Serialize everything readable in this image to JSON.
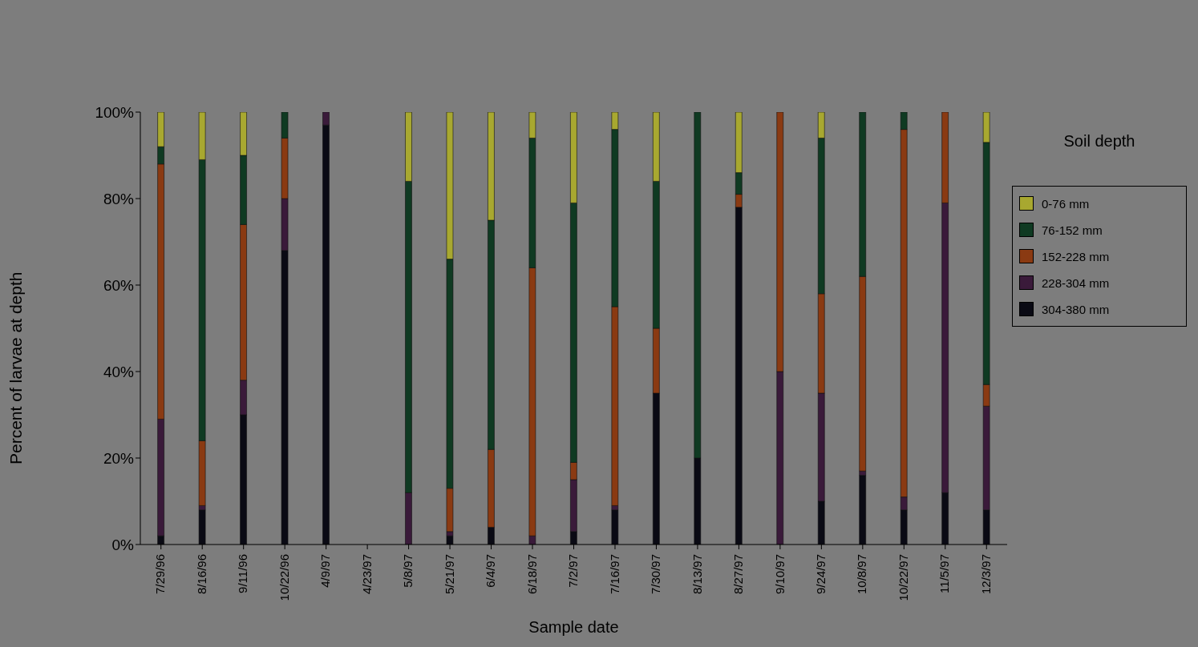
{
  "chart_data": {
    "type": "bar",
    "stacked": true,
    "xlabel": "Sample date",
    "ylabel": "Percent of larvae at depth",
    "legend_title": "Soil depth",
    "legend": "right",
    "categories": [
      "7/29/96",
      "8/16/96",
      "9/11/96",
      "10/22/96",
      "4/9/97",
      "4/23/97",
      "5/8/97",
      "5/21/97",
      "6/4/97",
      "6/18/97",
      "7/2/97",
      "7/16/97",
      "7/30/97",
      "8/13/97",
      "8/27/97",
      "9/10/97",
      "9/24/97",
      "10/8/97",
      "10/22/97",
      "11/5/97",
      "12/3/97"
    ],
    "ylim": [
      0,
      100
    ],
    "yticks": [
      {
        "value": 0,
        "label": "0%"
      },
      {
        "value": 20,
        "label": "20%"
      },
      {
        "value": 40,
        "label": "40%"
      },
      {
        "value": 60,
        "label": "60%"
      },
      {
        "value": 80,
        "label": "80%"
      },
      {
        "value": 100,
        "label": "100%"
      }
    ],
    "series": [
      {
        "name": "304-380 mm",
        "color": "#0a0a14",
        "values": [
          2,
          8,
          30,
          68,
          97,
          0,
          0,
          2,
          4,
          0,
          3,
          8,
          35,
          20,
          78,
          0,
          10,
          16,
          8,
          12,
          8
        ]
      },
      {
        "name": "228-304 mm",
        "color": "#3a1a3a",
        "values": [
          27,
          1,
          8,
          12,
          3,
          0,
          12,
          1,
          0,
          2,
          12,
          1,
          0,
          0,
          0,
          40,
          25,
          1,
          3,
          67,
          24
        ]
      },
      {
        "name": "152-228 mm",
        "color": "#8a3a12",
        "values": [
          59,
          15,
          36,
          14,
          0,
          0,
          0,
          10,
          18,
          62,
          4,
          46,
          15,
          0,
          3,
          60,
          23,
          45,
          85,
          21,
          5
        ]
      },
      {
        "name": "76-152 mm",
        "color": "#0f3a22",
        "values": [
          4,
          65,
          16,
          6,
          0,
          0,
          72,
          53,
          53,
          30,
          60,
          41,
          34,
          80,
          5,
          0,
          36,
          38,
          4,
          0,
          56
        ]
      },
      {
        "name": "0-76 mm",
        "color": "#a8a830",
        "values": [
          8,
          11,
          10,
          0,
          0,
          0,
          16,
          34,
          25,
          6,
          21,
          4,
          16,
          0,
          14,
          0,
          6,
          0,
          0,
          0,
          7
        ]
      }
    ]
  }
}
